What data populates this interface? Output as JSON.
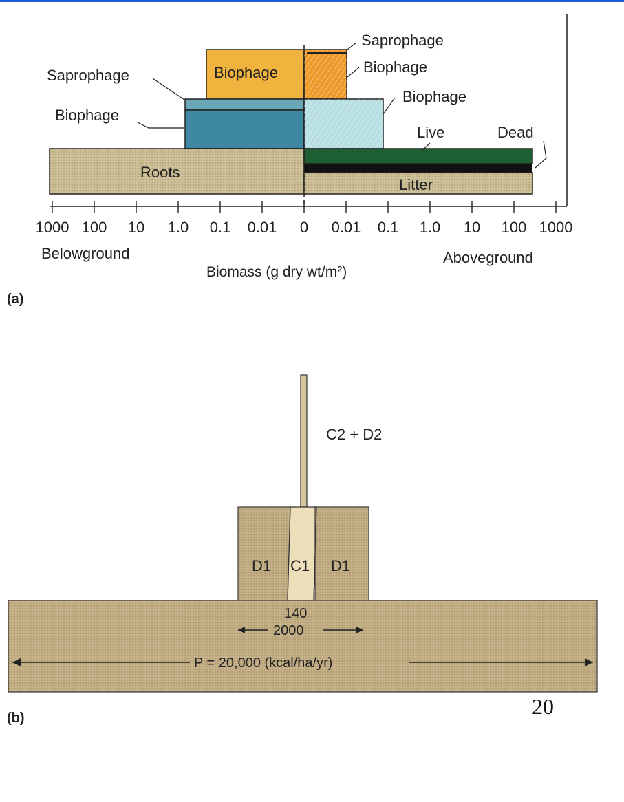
{
  "panel_a": {
    "tag": "(a)",
    "labels": {
      "saprophage_top": "Saprophage",
      "biophage_top_in": "Biophage",
      "biophage_top_right": "Biophage",
      "saprophage_left": "Saprophage",
      "biophage_left": "Biophage",
      "biophage_mid_right": "Biophage",
      "live": "Live",
      "dead": "Dead",
      "roots": "Roots",
      "litter": "Litter"
    },
    "tick_labels": [
      "1000",
      "100",
      "10",
      "1.0",
      "0.1",
      "0.01",
      "0",
      "0.01",
      "0.1",
      "1.0",
      "10",
      "100",
      "1000"
    ],
    "below_label": "Belowground",
    "above_label": "Aboveground",
    "axis_title": "Biomass (g dry wt/m²)",
    "colors": {
      "soil": "#cbbd93",
      "biophage_upper": "#f0b43e",
      "biophage_upper_right": "#ee9a2a",
      "biophage_mid": "#3f88a4",
      "biophage_mid_light": "#b7dfe2",
      "saprophage_left": "#6aa7b6",
      "live": "#1d5f33",
      "dead": "#111111"
    }
  },
  "panel_b": {
    "tag": "(b)",
    "labels": {
      "c2d2": "C2 + D2",
      "d1_left": "D1",
      "c1": "C1",
      "d1_right": "D1",
      "v140": "140",
      "v2000": "2000",
      "p": "P = 20,000 (kcal/ha/yr)"
    },
    "colors": {
      "soil": "#c2ad83",
      "light": "#ecdfb9",
      "mid": "#d6c69b"
    }
  },
  "page_number": "20"
}
